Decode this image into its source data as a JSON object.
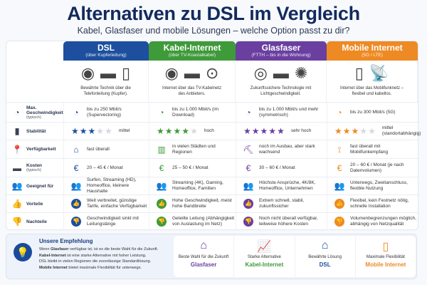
{
  "title": "Alternativen zu DSL im Vergleich",
  "subtitle": "Kabel, Glasfaser und mobile Lösungen – welche Option passt zu dir?",
  "columns": [
    {
      "name": "DSL",
      "sub": "(über Kupferleitung)",
      "color": "#1d4f9e",
      "desc": "Bewährte Technik über die Telefonleitung (Kupfer).",
      "icons": [
        "wall-socket-icon",
        "router-icon",
        "phone-box-icon"
      ]
    },
    {
      "name": "Kabel-Internet",
      "sub": "(über TV-Koaxialkabel)",
      "color": "#3f9a3a",
      "desc": "Internet über das TV-Kabelnetz des Anbieters.",
      "icons": [
        "coax-socket-icon",
        "cable-modem-icon",
        "coax-plug-icon"
      ]
    },
    {
      "name": "Glasfaser",
      "sub": "(FTTH – bis in die Wohnung)",
      "color": "#6a3fa0",
      "desc": "Zukunftssichere Technologie mit Lichtgeschwindigkeit.",
      "icons": [
        "fiber-socket-icon",
        "fiber-modem-icon",
        "fiber-strands-icon"
      ]
    },
    {
      "name": "Mobile Internet",
      "sub": "(5G / LTE)",
      "color": "#ee8a23",
      "desc": "Internet über das Mobilfunknetz – flexibel und kabellos.",
      "icons": [
        "5g-router-icon",
        "cell-tower-icon"
      ]
    }
  ],
  "rows": [
    {
      "label": "Max. Geschwindigkeit",
      "sublabel": "(typisch)",
      "icon": "speedometer-icon",
      "cells": [
        "bis zu 250 Mbit/s (Supervectoring)",
        "bis zu 1.000 Mbit/s (im Download)",
        "bis zu 1.000 Mbit/s und mehr (symmetrisch)",
        "bis zu 300 Mbit/s (5G)"
      ],
      "cell_icon": "speedometer-icon"
    },
    {
      "label": "Stabilität",
      "sublabel": "",
      "icon": "signal-bars-icon",
      "stars": [
        3,
        4,
        5,
        3
      ],
      "cells": [
        "mittel",
        "hoch",
        "sehr hoch",
        "mittel (standortabhängig)"
      ],
      "cell_icon": "stars"
    },
    {
      "label": "Verfügbarkeit",
      "sublabel": "",
      "icon": "location-pin-icon",
      "cells": [
        "fast überall",
        "in vielen Städten und Regionen",
        "noch im Ausbau, aber stark wachsend",
        "fast überall mit Mobilfunkempfang"
      ],
      "cell_icons": [
        "house-icon",
        "buildings-icon",
        "excavator-icon",
        "antenna-icon"
      ]
    },
    {
      "label": "Kosten",
      "sublabel": "(typisch)",
      "icon": "wallet-icon",
      "cells": [
        "20 – 45 € / Monat",
        "25 – 50 € / Monat",
        "30 – 60 € / Monat",
        "20 – 60 € / Monat (je nach Datenvolumen)"
      ],
      "cell_icon": "coins-euro-icon"
    },
    {
      "label": "Geeignet für",
      "sublabel": "",
      "icon": "users-icon",
      "cells": [
        "Surfen, Streaming (HD), Homeoffice, kleinere Haushalte",
        "Streaming (4K), Gaming, Homeoffice, Familien",
        "Höchste Ansprüche, 4K/8K, Homeoffice, Unternehmen",
        "Unterwegs, Zweitanschluss, flexible Nutzung"
      ],
      "cell_icon": "users-icon"
    },
    {
      "label": "Vorteile",
      "sublabel": "",
      "icon": "thumbs-up-icon",
      "cells": [
        "Weit verbreitet, günstige Tarife, einfache Verfügbarkeit",
        "Hohe Geschwindigkeit, meist hohe Bandbreite",
        "Extrem schnell, stabil, zukunftssicher",
        "Flexibel, kein Festnetz nötig, schnelle Installation"
      ],
      "cell_icon": "thumbs-up-icon"
    },
    {
      "label": "Nachteile",
      "sublabel": "",
      "icon": "thumbs-down-icon",
      "cells": [
        "Geschwindigkeit sinkt mit Leitungslänge",
        "Geteilte Leitung (Abhängigkeit von Auslastung im Netz)",
        "Noch nicht überall verfügbar, teilweise höhere Kosten",
        "Volumenbegrenzungen möglich, abhängig von Netzqualität"
      ],
      "cell_icon": "thumbs-down-icon"
    }
  ],
  "recommendation": {
    "title": "Unsere Empfehlung",
    "lines": [
      {
        "bold": "Glasfaser",
        "pre": "Wenn ",
        "post": " verfügbar ist, ist es die beste Wahl für die Zukunft."
      },
      {
        "bold": "Kabel-Internet",
        "pre": "",
        "post": " ist eine starke Alternative mit hoher Leistung."
      },
      {
        "bold": "",
        "pre": "DSL bleibt in vielen Regionen die zuverlässige Standardlösung.",
        "post": ""
      },
      {
        "bold": "Mobile Internet",
        "pre": "",
        "post": " bietet maximale Flexibilität für unterwegs."
      }
    ],
    "cards": [
      {
        "label": "Beste Wahl für die Zukunft",
        "name": "Glasfaser",
        "color": "#6a3fa0",
        "icon": "house-fiber-icon"
      },
      {
        "label": "Starke Alternative",
        "name": "Kabel-Internet",
        "color": "#3f9a3a",
        "icon": "growth-chart-icon"
      },
      {
        "label": "Bewährte Lösung",
        "name": "DSL",
        "color": "#1d4f9e",
        "icon": "house-icon"
      },
      {
        "label": "Maximale Flexibilität",
        "name": "Mobile Internet",
        "color": "#ee8a23",
        "icon": "smartphone-icon"
      }
    ]
  }
}
